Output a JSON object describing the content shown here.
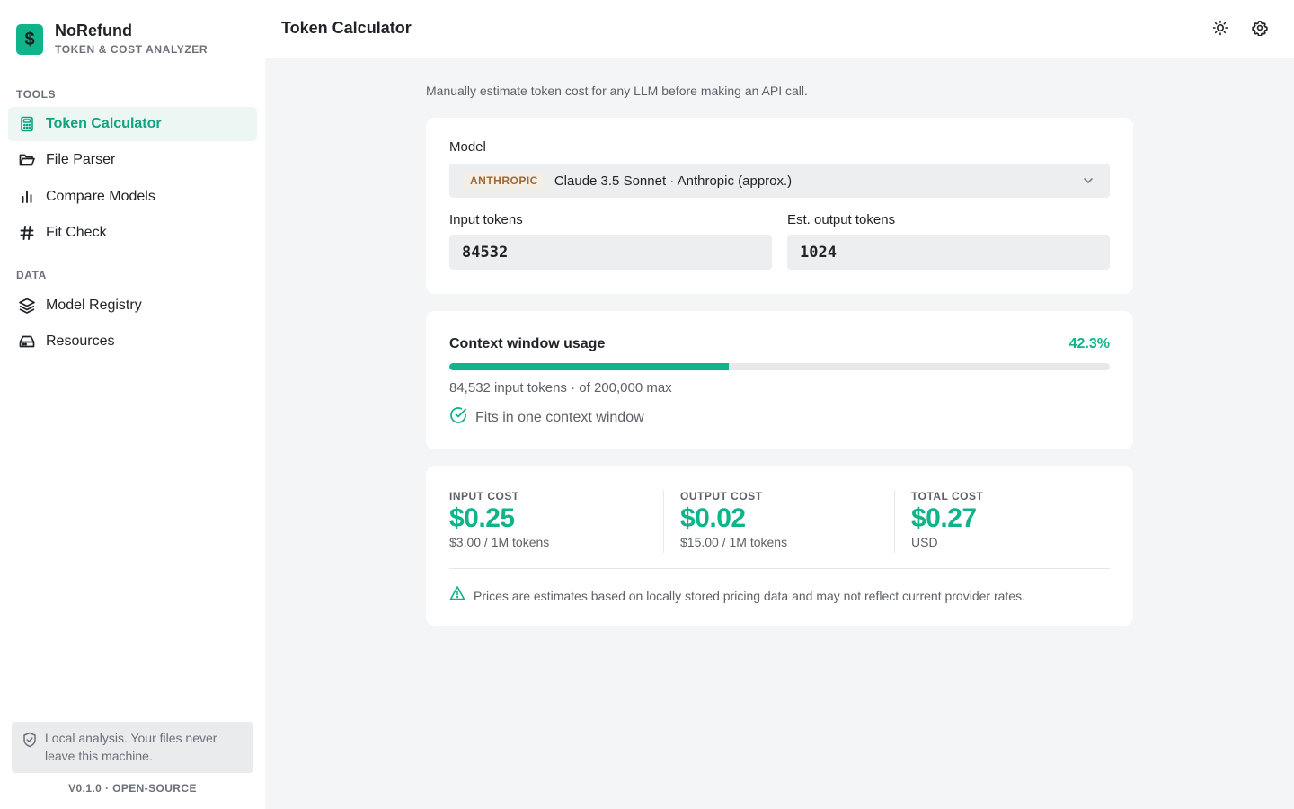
{
  "app": {
    "name": "NoRefund",
    "tagline": "TOKEN & COST ANALYZER",
    "logo_glyph": "$",
    "accent": "#10b48a"
  },
  "sidebar": {
    "sections": [
      {
        "label": "TOOLS"
      },
      {
        "label": "DATA"
      }
    ],
    "items": [
      {
        "label": "Token Calculator",
        "icon": "calculator-icon",
        "active": true
      },
      {
        "label": "File Parser",
        "icon": "folder-open-icon",
        "active": false
      },
      {
        "label": "Compare Models",
        "icon": "bar-chart-icon",
        "active": false
      },
      {
        "label": "Fit Check",
        "icon": "hash-icon",
        "active": false
      },
      {
        "label": "Model Registry",
        "icon": "layers-icon",
        "active": false
      },
      {
        "label": "Resources",
        "icon": "hard-drive-icon",
        "active": false
      }
    ],
    "note": "Local analysis. Your files never leave this machine.",
    "version": "V0.1.0 · OPEN-SOURCE"
  },
  "header": {
    "title": "Token Calculator",
    "theme_icon": "sun-icon",
    "settings_icon": "gear-icon"
  },
  "main": {
    "subtitle": "Manually estimate token cost for any LLM before making an API call.",
    "model": {
      "label": "Model",
      "provider_badge": "ANTHROPIC",
      "selected": "Claude 3.5 Sonnet · Anthropic (approx.)"
    },
    "input_tokens": {
      "label": "Input tokens",
      "value": "84532"
    },
    "output_tokens": {
      "label": "Est. output tokens",
      "value": "1024"
    },
    "usage": {
      "title": "Context window usage",
      "percent_text": "42.3%",
      "percent": 42.3,
      "detail": "84,532 input tokens · of 200,000 max",
      "fit_text": "Fits in one context window"
    },
    "costs": {
      "input": {
        "label": "INPUT COST",
        "value": "$0.25",
        "sub": "$3.00 / 1M tokens"
      },
      "output": {
        "label": "OUTPUT COST",
        "value": "$0.02",
        "sub": "$15.00 / 1M tokens"
      },
      "total": {
        "label": "TOTAL COST",
        "value": "$0.27",
        "sub": "USD"
      },
      "disclaimer": "Prices are estimates based on locally stored pricing data and may not reflect current provider rates."
    }
  }
}
